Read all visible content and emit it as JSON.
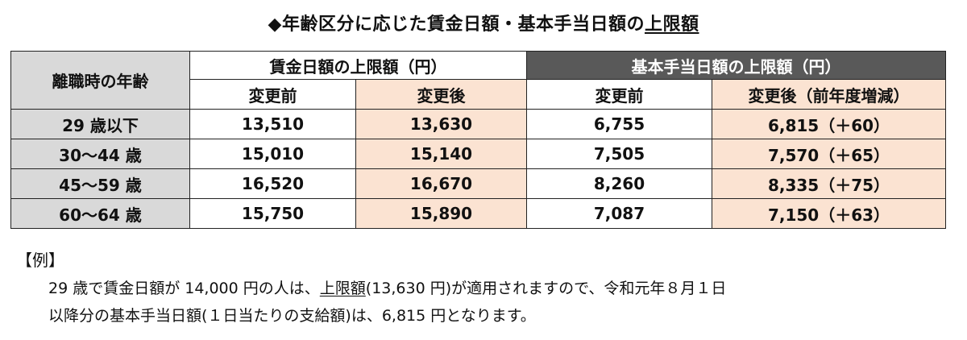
{
  "title": {
    "prefix": "◆年齢区分に応じた賃金日額・基本手当日額の",
    "underlined": "上限額"
  },
  "table": {
    "row_header": "離職時の年齢",
    "group_wage": "賃金日額の上限額（円）",
    "group_basic": "基本手当日額の上限額（円）",
    "sub_headers": [
      "変更前",
      "変更後",
      "変更前",
      "変更後（前年度増減）"
    ],
    "rows": [
      {
        "age": "29 歳以下",
        "wage_before": "13,510",
        "wage_after": "13,630",
        "basic_before": "6,755",
        "basic_after": "6,815（＋60）"
      },
      {
        "age": "30～44 歳",
        "wage_before": "15,010",
        "wage_after": "15,140",
        "basic_before": "7,505",
        "basic_after": "7,570（＋65）"
      },
      {
        "age": "45～59 歳",
        "wage_before": "16,520",
        "wage_after": "16,670",
        "basic_before": "8,260",
        "basic_after": "8,335（＋75）"
      },
      {
        "age": "60～64 歳",
        "wage_before": "15,750",
        "wage_after": "15,890",
        "basic_before": "7,087",
        "basic_after": "7,150（＋63）"
      }
    ]
  },
  "example": {
    "heading": "【例】",
    "line1_a": "29 歳で賃金日額が 14,000 円の人は、",
    "line1_ul": "上限額",
    "line1_b": "(13,630 円)が適用されますので、令和元年８月１日",
    "line2": "以降分の基本手当日額(１日当たりの支給額)は、6,815 円となります。"
  }
}
